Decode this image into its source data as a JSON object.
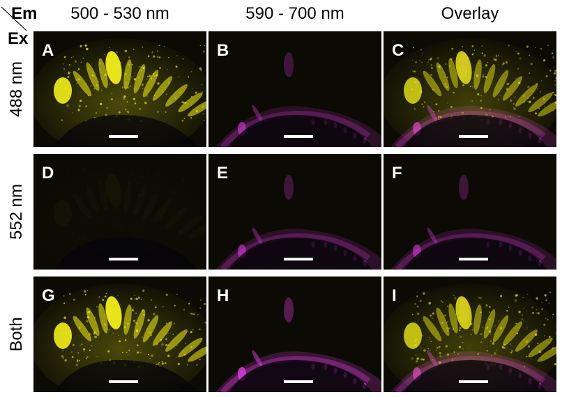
{
  "axis_labels": {
    "emission": "Em",
    "excitation": "Ex"
  },
  "columns": [
    "500 - 530 nm",
    "590 - 700 nm",
    "Overlay"
  ],
  "rows": [
    "488 nm",
    "552 nm",
    "Both"
  ],
  "panels": [
    {
      "letter": "A",
      "channel": "yellow",
      "intensity": "bright"
    },
    {
      "letter": "B",
      "channel": "magenta",
      "intensity": "moderate"
    },
    {
      "letter": "C",
      "channel": "overlay",
      "intensity": "bright"
    },
    {
      "letter": "D",
      "channel": "yellow",
      "intensity": "near-black"
    },
    {
      "letter": "E",
      "channel": "magenta",
      "intensity": "moderate"
    },
    {
      "letter": "F",
      "channel": "magenta",
      "intensity": "moderate"
    },
    {
      "letter": "G",
      "channel": "yellow",
      "intensity": "bright"
    },
    {
      "letter": "H",
      "channel": "magenta",
      "intensity": "bright"
    },
    {
      "letter": "I",
      "channel": "overlay",
      "intensity": "bright"
    }
  ],
  "colors": {
    "yellow": "#f2ee1a",
    "magenta": "#e03ee0",
    "background": "#0b0a04"
  }
}
